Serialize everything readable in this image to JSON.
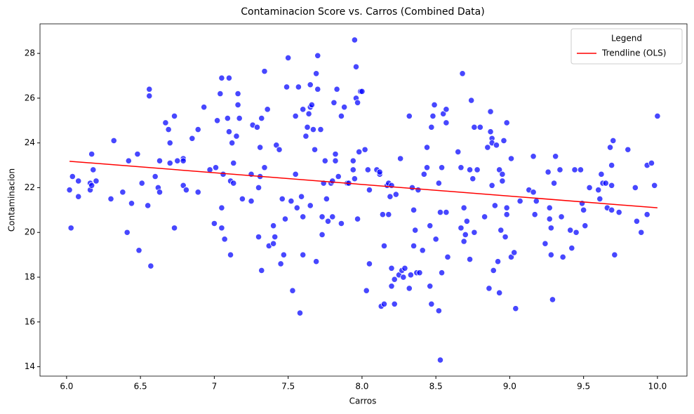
{
  "chart_data": {
    "type": "scatter",
    "title": "Contaminacion Score vs. Carros (Combined Data)",
    "x_label": "Carros",
    "y_label": "Contaminacion",
    "legend_title": "Legend",
    "legend_position": "upper right",
    "xlim": [
      5.82,
      10.2
    ],
    "ylim": [
      13.58,
      29.32
    ],
    "xticks": [
      {
        "value": 6,
        "label": "6.0"
      },
      6.5,
      7,
      7.5,
      {
        "value": 8,
        "label": "8.0"
      },
      8.5,
      {
        "value": 9,
        "label": "9.0"
      },
      9.5,
      {
        "value": 10,
        "label": "10.0"
      }
    ],
    "yticks": [
      14,
      16,
      18,
      20,
      22,
      24,
      26,
      28
    ],
    "points": {
      "color": "#0000ff",
      "x": [
        6.02,
        6.03,
        6.04,
        6.08,
        6.08,
        6.16,
        6.16,
        6.17,
        6.17,
        6.18,
        6.2,
        6.3,
        6.32,
        6.38,
        6.41,
        6.42,
        6.44,
        6.48,
        6.49,
        6.51,
        6.55,
        6.56,
        6.56,
        6.57,
        6.6,
        6.62,
        6.63,
        6.63,
        6.67,
        6.69,
        6.7,
        6.7,
        6.73,
        6.73,
        6.75,
        6.79,
        6.79,
        6.79,
        6.81,
        6.85,
        6.89,
        6.89,
        6.93,
        6.97,
        7.0,
        7.01,
        7.02,
        7.04,
        7.05,
        7.05,
        7.05,
        7.06,
        7.07,
        7.09,
        7.1,
        7.1,
        7.11,
        7.11,
        7.12,
        7.13,
        7.13,
        7.15,
        7.16,
        7.16,
        7.17,
        7.19,
        7.25,
        7.25,
        7.26,
        7.29,
        7.3,
        7.3,
        7.31,
        7.31,
        7.32,
        7.32,
        7.34,
        7.34,
        7.36,
        7.37,
        7.4,
        7.4,
        7.41,
        7.42,
        7.44,
        7.45,
        7.46,
        7.47,
        7.48,
        7.49,
        7.5,
        7.52,
        7.53,
        7.55,
        7.55,
        7.56,
        7.57,
        7.58,
        7.59,
        7.6,
        7.6,
        7.6,
        7.62,
        7.63,
        7.64,
        7.65,
        7.65,
        7.65,
        7.66,
        7.67,
        7.68,
        7.69,
        7.69,
        7.7,
        7.7,
        7.72,
        7.73,
        7.73,
        7.74,
        7.75,
        7.76,
        7.77,
        7.79,
        7.8,
        7.8,
        7.81,
        7.82,
        7.82,
        7.83,
        7.84,
        7.86,
        7.86,
        7.88,
        7.9,
        7.91,
        7.94,
        7.94,
        7.95,
        7.95,
        7.96,
        7.96,
        7.97,
        7.97,
        7.98,
        7.99,
        8.0,
        8.02,
        8.03,
        8.04,
        8.05,
        8.05,
        8.1,
        8.12,
        8.12,
        8.13,
        8.14,
        8.15,
        8.15,
        8.17,
        8.18,
        8.18,
        8.19,
        8.2,
        8.2,
        8.2,
        8.22,
        8.22,
        8.23,
        8.25,
        8.26,
        8.27,
        8.28,
        8.29,
        8.32,
        8.32,
        8.33,
        8.34,
        8.35,
        8.35,
        8.36,
        8.37,
        8.38,
        8.39,
        8.41,
        8.42,
        8.44,
        8.44,
        8.46,
        8.46,
        8.47,
        8.47,
        8.48,
        8.49,
        8.5,
        8.52,
        8.52,
        8.53,
        8.53,
        8.54,
        8.54,
        8.55,
        8.57,
        8.57,
        8.57,
        8.58,
        8.65,
        8.67,
        8.67,
        8.68,
        8.69,
        8.69,
        8.7,
        8.71,
        8.73,
        8.73,
        8.74,
        8.75,
        8.76,
        8.76,
        8.78,
        8.8,
        8.83,
        8.85,
        8.86,
        8.87,
        8.87,
        8.88,
        8.88,
        8.88,
        8.89,
        8.9,
        8.91,
        8.92,
        8.93,
        8.93,
        8.94,
        8.95,
        8.95,
        8.96,
        8.97,
        8.98,
        8.98,
        8.98,
        9.01,
        9.01,
        9.03,
        9.04,
        9.07,
        9.13,
        9.16,
        9.16,
        9.18,
        9.17,
        9.24,
        9.26,
        9.27,
        9.27,
        9.28,
        9.28,
        9.29,
        9.3,
        9.31,
        9.34,
        9.35,
        9.36,
        9.41,
        9.42,
        9.44,
        9.45,
        9.48,
        9.49,
        9.5,
        9.51,
        9.54,
        9.6,
        9.61,
        9.62,
        9.63,
        9.65,
        9.66,
        9.68,
        9.69,
        9.69,
        9.69,
        9.7,
        9.71,
        9.74,
        9.8,
        9.85,
        9.86,
        9.89,
        9.93,
        9.93,
        9.96,
        9.98,
        10.0
      ],
      "y": [
        21.9,
        20.2,
        22.5,
        22.3,
        21.6,
        22.2,
        21.9,
        22.1,
        23.5,
        22.8,
        22.3,
        21.5,
        24.1,
        21.8,
        20.0,
        23.2,
        21.3,
        23.5,
        19.2,
        22.2,
        21.2,
        26.4,
        26.1,
        18.5,
        22.5,
        22.0,
        21.8,
        23.2,
        24.9,
        24.6,
        23.1,
        24.0,
        25.2,
        20.2,
        23.2,
        23.3,
        23.2,
        22.1,
        21.9,
        24.2,
        24.6,
        21.8,
        25.6,
        22.8,
        20.4,
        22.9,
        25.0,
        26.2,
        26.9,
        21.1,
        20.2,
        22.6,
        19.7,
        25.1,
        26.9,
        24.5,
        19.0,
        22.3,
        24.0,
        22.2,
        23.1,
        24.3,
        26.2,
        25.7,
        25.1,
        21.5,
        22.6,
        21.4,
        24.8,
        24.7,
        19.8,
        22.0,
        23.8,
        22.5,
        18.3,
        25.1,
        27.2,
        22.9,
        25.5,
        19.4,
        20.3,
        19.5,
        19.8,
        23.9,
        23.7,
        18.6,
        21.5,
        19.0,
        20.6,
        26.5,
        27.8,
        21.4,
        17.4,
        25.2,
        22.6,
        21.1,
        26.5,
        16.4,
        21.6,
        20.7,
        25.5,
        19.0,
        24.3,
        24.7,
        25.3,
        26.6,
        25.6,
        21.2,
        25.7,
        24.6,
        23.7,
        27.1,
        18.7,
        26.4,
        27.9,
        24.6,
        20.7,
        19.9,
        22.2,
        23.2,
        21.5,
        20.5,
        22.2,
        22.3,
        20.7,
        25.8,
        23.5,
        23.2,
        26.4,
        22.5,
        20.4,
        25.2,
        25.6,
        22.2,
        22.2,
        23.2,
        22.8,
        22.4,
        28.6,
        27.4,
        26.0,
        25.8,
        20.6,
        23.6,
        26.3,
        26.3,
        23.7,
        17.4,
        22.8,
        18.6,
        21.9,
        22.8,
        22.6,
        22.7,
        16.7,
        20.8,
        16.8,
        19.4,
        22.1,
        20.8,
        22.2,
        21.6,
        17.6,
        18.4,
        22.1,
        17.9,
        16.8,
        21.7,
        18.1,
        23.3,
        18.3,
        18.0,
        18.4,
        25.2,
        17.5,
        18.1,
        22.0,
        21.0,
        19.4,
        20.1,
        18.2,
        21.9,
        18.2,
        19.2,
        22.6,
        22.9,
        23.8,
        17.6,
        20.3,
        24.7,
        16.8,
        25.2,
        25.7,
        19.7,
        16.5,
        22.2,
        14.3,
        20.9,
        18.2,
        22.9,
        25.3,
        25.5,
        20.9,
        24.9,
        18.9,
        23.6,
        22.9,
        20.2,
        27.1,
        21.1,
        19.6,
        19.9,
        20.5,
        22.8,
        18.8,
        25.9,
        22.4,
        24.7,
        20.0,
        22.8,
        24.7,
        20.7,
        23.8,
        17.5,
        24.5,
        25.4,
        24.2,
        24.0,
        22.1,
        18.3,
        21.2,
        23.9,
        18.7,
        22.8,
        17.3,
        20.1,
        22.3,
        22.6,
        24.1,
        19.8,
        24.9,
        20.8,
        21.1,
        18.9,
        23.3,
        19.1,
        16.6,
        21.4,
        21.9,
        21.8,
        23.4,
        21.4,
        20.8,
        19.5,
        22.7,
        21.1,
        20.6,
        20.2,
        19.0,
        17.0,
        22.2,
        23.4,
        22.8,
        20.7,
        18.9,
        20.1,
        19.3,
        22.8,
        20.0,
        22.8,
        21.3,
        21.0,
        20.3,
        22.0,
        21.9,
        21.5,
        22.6,
        22.2,
        22.2,
        21.1,
        23.8,
        22.1,
        21.0,
        23.0,
        24.1,
        19.0,
        20.9,
        23.7,
        22.0,
        20.5,
        20.0,
        20.8,
        23.0,
        23.1,
        22.1,
        25.2
      ]
    },
    "trendline": {
      "name": "Trendline (OLS)",
      "color": "#ff0000",
      "x": [
        6.02,
        10.0
      ],
      "values": [
        23.18,
        21.1
      ]
    }
  }
}
